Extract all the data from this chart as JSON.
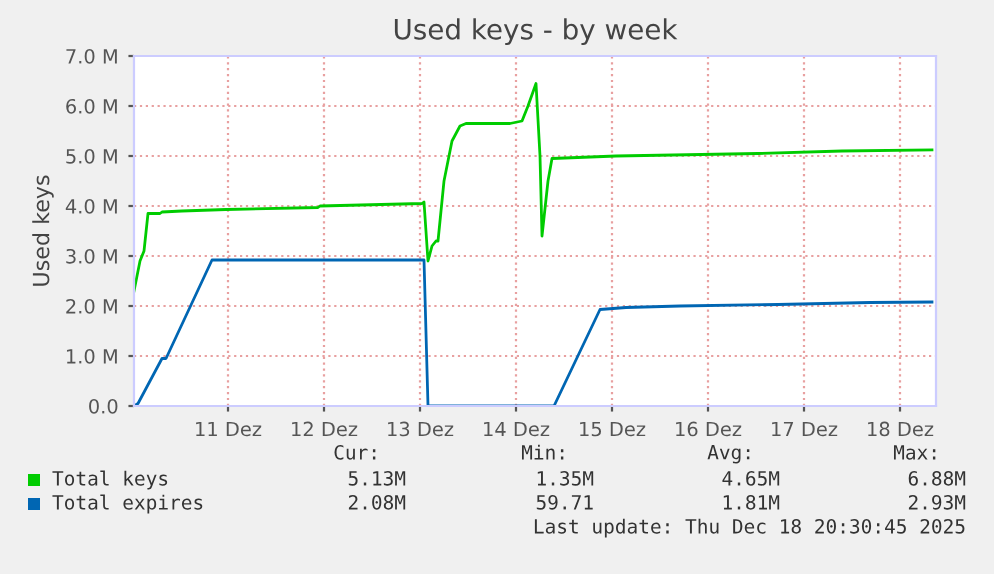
{
  "chart_data": {
    "type": "line",
    "title": "Used keys - by week",
    "ylabel": "Used keys",
    "series": [
      {
        "name": "Total keys",
        "color": "#00cc00",
        "x": [
          "2025-12-10T12:30",
          "2025-12-10T14:00",
          "2025-12-10T15:00",
          "2025-12-10T16:00",
          "2025-12-10T19:00",
          "2025-12-10T19:30",
          "2025-12-11T00:30",
          "2025-12-11T11:30",
          "2025-12-12T10:30",
          "2025-12-12T11:00",
          "2025-12-13T12:30",
          "2025-12-13T13:00",
          "2025-12-13T14:00",
          "2025-12-13T15:00",
          "2025-12-13T16:00",
          "2025-12-13T16:30",
          "2025-12-13T18:00",
          "2025-12-13T20:00",
          "2025-12-13T22:00",
          "2025-12-13T23:30",
          "2025-12-14T10:30",
          "2025-12-14T13:30",
          "2025-12-14T15:00",
          "2025-12-14T17:00",
          "2025-12-14T18:00",
          "2025-12-14T18:30",
          "2025-12-14T20:00",
          "2025-12-14T21:00",
          "2025-12-15T13:00",
          "2025-12-17T00:30",
          "2025-12-17T21:30",
          "2025-12-18T20:00"
        ],
        "values": [
          2300000,
          2900000,
          3100000,
          3850000,
          3850000,
          3880000,
          3900000,
          3930000,
          3970000,
          4000000,
          4050000,
          4080000,
          2900000,
          3200000,
          3300000,
          3300000,
          4500000,
          5300000,
          5600000,
          5650000,
          5650000,
          5700000,
          6000000,
          6450000,
          5000000,
          3400000,
          4500000,
          4950000,
          5000000,
          5050000,
          5100000,
          5120000
        ]
      },
      {
        "name": "Total expires",
        "color": "#0066b3",
        "x": [
          "2025-12-10T12:30",
          "2025-12-10T13:30",
          "2025-12-10T19:30",
          "2025-12-10T20:30",
          "2025-12-11T08:00",
          "2025-12-13T13:00",
          "2025-12-13T14:00",
          "2025-12-14T21:30",
          "2025-12-15T09:00",
          "2025-12-15T15:30",
          "2025-12-16T05:00",
          "2025-12-17T05:30",
          "2025-12-18T04:30",
          "2025-12-18T20:00"
        ],
        "values": [
          0,
          50000,
          950000,
          950000,
          2920000,
          2920000,
          0,
          0,
          1930000,
          1970000,
          2000000,
          2030000,
          2070000,
          2080000
        ]
      }
    ],
    "xlim": [
      "2025-12-10T12:30",
      "2025-12-18T21:00"
    ],
    "xticks": [
      {
        "value": "2025-12-11T12:00",
        "label": "11 Dez"
      },
      {
        "value": "2025-12-12T12:00",
        "label": "12 Dez"
      },
      {
        "value": "2025-12-13T12:00",
        "label": "13 Dez"
      },
      {
        "value": "2025-12-14T12:00",
        "label": "14 Dez"
      },
      {
        "value": "2025-12-15T12:00",
        "label": "15 Dez"
      },
      {
        "value": "2025-12-16T12:00",
        "label": "16 Dez"
      },
      {
        "value": "2025-12-17T12:00",
        "label": "17 Dez"
      },
      {
        "value": "2025-12-18T12:00",
        "label": "18 Dez"
      }
    ],
    "ylim": [
      0,
      7000000
    ],
    "yticks": [
      {
        "value": 0,
        "label": "0.0"
      },
      {
        "value": 1000000,
        "label": "1.0 M"
      },
      {
        "value": 2000000,
        "label": "2.0 M"
      },
      {
        "value": 3000000,
        "label": "3.0 M"
      },
      {
        "value": 4000000,
        "label": "4.0 M"
      },
      {
        "value": 5000000,
        "label": "5.0 M"
      },
      {
        "value": 6000000,
        "label": "6.0 M"
      },
      {
        "value": 7000000,
        "label": "7.0 M"
      }
    ],
    "grid": true,
    "legend": "bottom",
    "marker": "none",
    "line_style": "solid",
    "annotations": [
      "Cur:",
      "Min:",
      "Avg:",
      "Max:",
      "5.13M",
      "1.35M",
      "4.65M",
      "6.88M",
      "2.08M",
      "59.71",
      "1.81M",
      "2.93M",
      "Last update: Thu Dec 18 20:30:45 2025"
    ]
  }
}
